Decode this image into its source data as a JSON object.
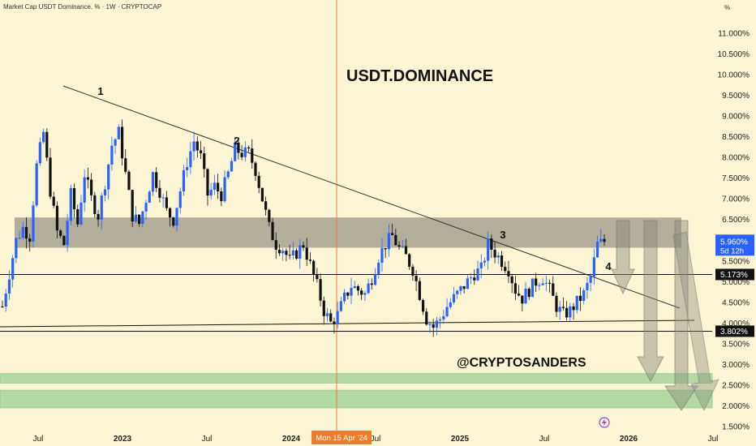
{
  "header": {
    "symbol": "Market Cap USDT Dominance, % · 1W · CRYPTOCAP",
    "unit": "%"
  },
  "chart_data": {
    "type": "candlestick",
    "title": "USDT.DOMINANCE",
    "watermark": "@CRYPTOSANDERS",
    "yticks": [
      "11.000%",
      "10.500%",
      "10.000%",
      "9.500%",
      "9.000%",
      "8.500%",
      "8.000%",
      "7.500%",
      "7.000%",
      "6.500%",
      "6.000%",
      "5.500%",
      "5.000%",
      "4.500%",
      "4.000%",
      "3.500%",
      "3.000%",
      "2.500%",
      "2.000%",
      "1.500%"
    ],
    "ytick_values": [
      11,
      10.5,
      10,
      9.5,
      9,
      8.5,
      8,
      7.5,
      7,
      6.5,
      6,
      5.5,
      5,
      4.5,
      4,
      3.5,
      3,
      2.5,
      2,
      1.5
    ],
    "ylim": [
      1.5,
      11.5
    ],
    "xticks": [
      {
        "label": "Jul",
        "bold": false,
        "date": "2022-07"
      },
      {
        "label": "2023",
        "bold": true,
        "date": "2023-01"
      },
      {
        "label": "Jul",
        "bold": false,
        "date": "2023-07"
      },
      {
        "label": "2024",
        "bold": true,
        "date": "2024-01"
      },
      {
        "label": "Jul",
        "bold": false,
        "date": "2024-07"
      },
      {
        "label": "2025",
        "bold": true,
        "date": "2025-01"
      },
      {
        "label": "Jul",
        "bold": false,
        "date": "2025-07"
      },
      {
        "label": "2026",
        "bold": true,
        "date": "2026-01"
      },
      {
        "label": "Jul",
        "bold": false,
        "date": "2026-07"
      }
    ],
    "crosshair": {
      "date_label": "Mon 15 Apr '24",
      "date": "2024-04-15"
    },
    "current_price": {
      "label": "5.960%",
      "countdown": "5d 12h",
      "value": 5.96,
      "color": "#2962ff"
    },
    "levels": [
      {
        "label": "5.173%",
        "value": 5.173
      },
      {
        "label": "3.802%",
        "value": 3.802
      }
    ],
    "resistance_zone": [
      5.82,
      6.55
    ],
    "support_zones": [
      [
        2.55,
        2.78
      ],
      [
        1.95,
        2.38
      ]
    ],
    "trendline_points": [
      {
        "label": "1",
        "date": "2022-10"
      },
      {
        "label": "2",
        "date": "2023-09"
      },
      {
        "label": "3",
        "date": "2025-02"
      },
      {
        "label": "4",
        "date": "2025-10"
      }
    ],
    "candle_path": [
      4.4,
      5.2,
      6.0,
      6.3,
      6.1,
      7.8,
      8.6,
      7.2,
      6.2,
      5.9,
      7.1,
      6.4,
      7.6,
      7.0,
      6.6,
      7.4,
      8.3,
      8.6,
      7.6,
      6.6,
      6.4,
      7.0,
      7.6,
      7.2,
      6.7,
      6.5,
      7.2,
      7.9,
      8.4,
      8.0,
      7.1,
      7.3,
      7.1,
      7.6,
      8.2,
      8.1,
      8.1,
      7.7,
      7.0,
      6.3,
      5.9,
      5.8,
      5.5,
      5.7,
      5.9,
      5.4,
      4.9,
      4.3,
      4.0,
      4.2,
      4.6,
      4.9,
      4.8,
      4.7,
      5.1,
      5.6,
      5.9,
      6.1,
      5.8,
      5.6,
      5.3,
      4.7,
      4.1,
      3.9,
      4.1,
      4.4,
      4.6,
      4.8,
      5.0,
      5.2,
      5.3,
      5.9,
      5.7,
      5.5,
      5.3,
      4.8,
      4.6,
      4.8,
      5.0,
      5.1,
      4.8,
      4.4,
      4.2,
      4.3,
      4.5,
      4.7,
      5.1,
      5.9,
      5.96
    ],
    "candle_colors": {
      "up": "#2962ff",
      "down": "#111111"
    }
  }
}
